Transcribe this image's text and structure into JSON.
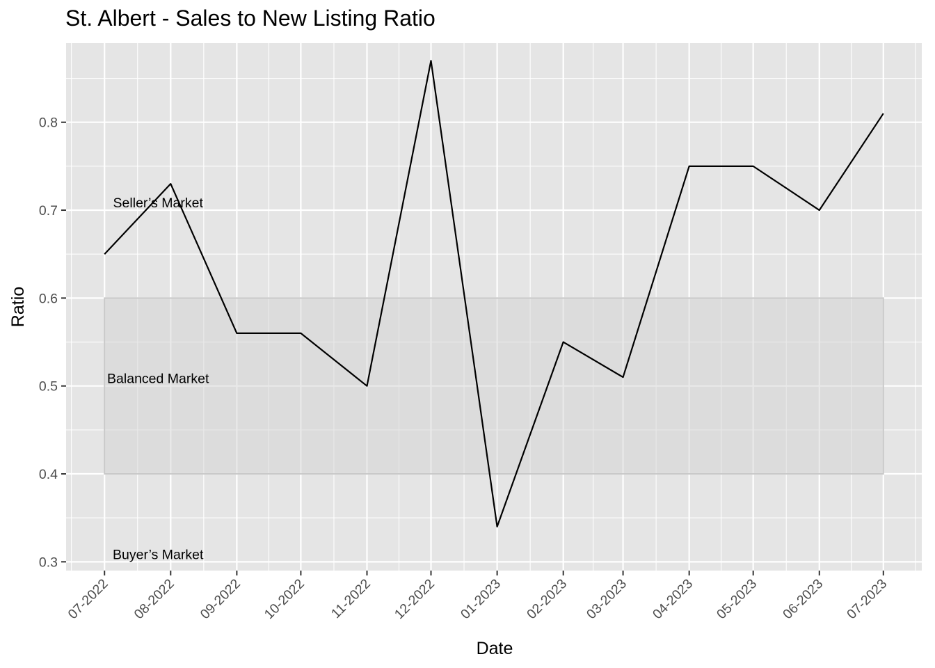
{
  "chart_data": {
    "type": "line",
    "title": "St. Albert - Sales to New Listing Ratio",
    "xlabel": "Date",
    "ylabel": "Ratio",
    "categories": [
      "07-2022",
      "08-2022",
      "09-2022",
      "10-2022",
      "11-2022",
      "12-2022",
      "01-2023",
      "02-2023",
      "03-2023",
      "04-2023",
      "05-2023",
      "06-2023",
      "07-2023"
    ],
    "x_dates": [
      "2022-07-01",
      "2022-08-01",
      "2022-09-01",
      "2022-10-01",
      "2022-11-01",
      "2022-12-01",
      "2023-01-01",
      "2023-02-01",
      "2023-03-01",
      "2023-04-01",
      "2023-05-01",
      "2023-06-01",
      "2023-07-01"
    ],
    "series": [
      {
        "values": [
          0.65,
          0.73,
          0.56,
          0.56,
          0.5,
          0.87,
          0.34,
          0.55,
          0.51,
          0.75,
          0.75,
          0.7,
          0.81
        ]
      }
    ],
    "y_ticks": [
      "0.3",
      "0.4",
      "0.5",
      "0.6",
      "0.7",
      "0.8"
    ],
    "ylim": [
      0.29,
      0.89
    ],
    "xlim": [
      "2022-06-13",
      "2023-07-19"
    ],
    "grid": true,
    "balanced_band": {
      "ymin": 0.4,
      "ymax": 0.6
    },
    "annotations": [
      {
        "text": "Seller’s Market",
        "x": "2022-07-01",
        "y": 0.7
      },
      {
        "text": "Balanced Market",
        "x": "2022-07-01",
        "y": 0.5
      },
      {
        "text": "Buyer’s Market",
        "x": "2022-07-01",
        "y": 0.3
      }
    ],
    "colors": {
      "panel": "#e5e5e5",
      "grid": "#ffffff",
      "line": "#000000",
      "band_fill": "#d3d3d3",
      "band_stroke": "#c8c8c8",
      "tick_text": "#4d4d4d"
    }
  }
}
